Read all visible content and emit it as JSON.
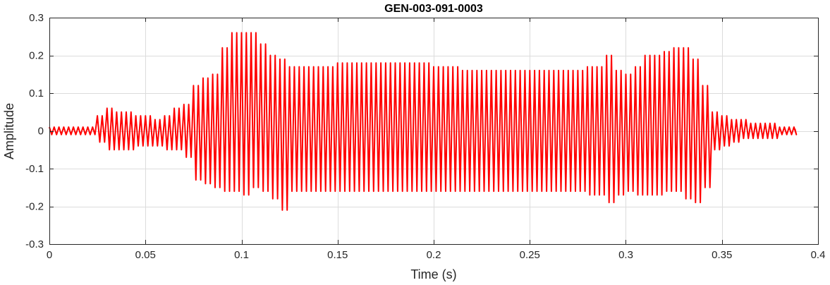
{
  "chart_data": {
    "type": "line",
    "title": "GEN-003-091-0003",
    "xlabel": "Time (s)",
    "ylabel": "Amplitude",
    "xlim": [
      0,
      0.4
    ],
    "ylim": [
      -0.3,
      0.3
    ],
    "xticks": [
      0,
      0.05,
      0.1,
      0.15,
      0.2,
      0.25,
      0.3,
      0.35,
      0.4
    ],
    "xtick_labels": [
      "0",
      "0.05",
      "0.1",
      "0.15",
      "0.2",
      "0.25",
      "0.3",
      "0.35",
      "0.4"
    ],
    "yticks": [
      -0.3,
      -0.2,
      -0.1,
      0,
      0.1,
      0.2,
      0.3
    ],
    "ytick_labels": [
      "-0.3",
      "-0.2",
      "-0.1",
      "0",
      "0.1",
      "0.2",
      "0.3"
    ],
    "grid": true,
    "series": [
      {
        "color": "#ff0000",
        "x": [
          0,
          0.005,
          0.01,
          0.015,
          0.02,
          0.025,
          0.03,
          0.035,
          0.04,
          0.045,
          0.05,
          0.055,
          0.06,
          0.065,
          0.07,
          0.075,
          0.08,
          0.085,
          0.09,
          0.095,
          0.1,
          0.105,
          0.11,
          0.115,
          0.12,
          0.125,
          0.13,
          0.135,
          0.14,
          0.145,
          0.15,
          0.155,
          0.16,
          0.165,
          0.17,
          0.175,
          0.18,
          0.185,
          0.19,
          0.195,
          0.2,
          0.205,
          0.21,
          0.215,
          0.22,
          0.225,
          0.23,
          0.235,
          0.24,
          0.245,
          0.25,
          0.255,
          0.26,
          0.265,
          0.27,
          0.275,
          0.28,
          0.285,
          0.29,
          0.295,
          0.3,
          0.305,
          0.31,
          0.315,
          0.32,
          0.325,
          0.33,
          0.335,
          0.34,
          0.345,
          0.35,
          0.355,
          0.36,
          0.365,
          0.37,
          0.375,
          0.38,
          0.385
        ],
        "y_max": [
          0.01,
          0.01,
          0.01,
          0.01,
          0.01,
          0.04,
          0.06,
          0.05,
          0.05,
          0.04,
          0.04,
          0.03,
          0.04,
          0.06,
          0.07,
          0.12,
          0.14,
          0.15,
          0.22,
          0.26,
          0.26,
          0.26,
          0.23,
          0.2,
          0.19,
          0.17,
          0.17,
          0.17,
          0.17,
          0.17,
          0.18,
          0.18,
          0.18,
          0.18,
          0.18,
          0.18,
          0.18,
          0.18,
          0.18,
          0.18,
          0.17,
          0.17,
          0.17,
          0.16,
          0.16,
          0.16,
          0.16,
          0.16,
          0.16,
          0.16,
          0.16,
          0.16,
          0.16,
          0.16,
          0.16,
          0.16,
          0.17,
          0.17,
          0.2,
          0.16,
          0.15,
          0.17,
          0.2,
          0.2,
          0.21,
          0.22,
          0.22,
          0.19,
          0.12,
          0.05,
          0.04,
          0.03,
          0.03,
          0.02,
          0.02,
          0.02,
          0.01,
          0.01
        ],
        "y_min": [
          -0.01,
          -0.01,
          -0.01,
          -0.01,
          -0.01,
          -0.03,
          -0.05,
          -0.05,
          -0.05,
          -0.04,
          -0.04,
          -0.04,
          -0.05,
          -0.05,
          -0.07,
          -0.13,
          -0.14,
          -0.15,
          -0.16,
          -0.16,
          -0.17,
          -0.15,
          -0.16,
          -0.18,
          -0.21,
          -0.16,
          -0.16,
          -0.16,
          -0.16,
          -0.16,
          -0.16,
          -0.16,
          -0.16,
          -0.16,
          -0.16,
          -0.16,
          -0.16,
          -0.16,
          -0.16,
          -0.16,
          -0.16,
          -0.16,
          -0.16,
          -0.16,
          -0.16,
          -0.16,
          -0.16,
          -0.16,
          -0.16,
          -0.16,
          -0.16,
          -0.16,
          -0.16,
          -0.16,
          -0.16,
          -0.16,
          -0.17,
          -0.17,
          -0.19,
          -0.17,
          -0.16,
          -0.17,
          -0.17,
          -0.17,
          -0.16,
          -0.16,
          -0.18,
          -0.19,
          -0.15,
          -0.05,
          -0.04,
          -0.03,
          -0.02,
          -0.02,
          -0.02,
          -0.02,
          -0.01,
          -0.01
        ]
      }
    ]
  }
}
